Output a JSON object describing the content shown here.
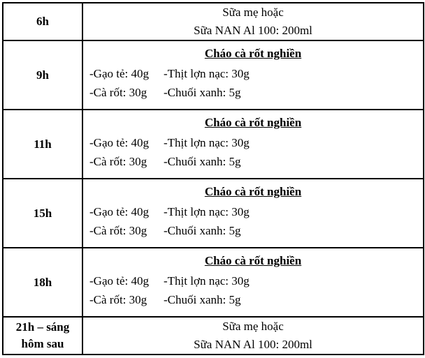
{
  "meta": {
    "border_color": "#000000",
    "background_color": "#ffffff",
    "text_color": "#000000"
  },
  "schedule": {
    "rows": [
      {
        "kind": "milk",
        "time_lines": [
          "6h"
        ],
        "lines": [
          "Sữa mẹ hoặc",
          "Sữa NAN Al 100: 200ml"
        ]
      },
      {
        "kind": "meal",
        "time_lines": [
          "9h"
        ],
        "title": "Cháo cà rốt nghiền",
        "ingredient_rows": [
          [
            "-Gạo tẻ: 40g",
            "-Thịt lợn nạc: 30g"
          ],
          [
            "-Cà rốt: 30g",
            "-Chuối xanh: 5g"
          ]
        ]
      },
      {
        "kind": "meal",
        "time_lines": [
          "11h"
        ],
        "title": "Cháo cà rốt nghiền",
        "ingredient_rows": [
          [
            "-Gạo tẻ: 40g",
            "-Thịt lợn nạc: 30g"
          ],
          [
            "-Cà rốt: 30g",
            "-Chuối xanh: 5g"
          ]
        ]
      },
      {
        "kind": "meal",
        "time_lines": [
          "15h"
        ],
        "title": "Cháo cà rốt nghiền",
        "ingredient_rows": [
          [
            "-Gạo tẻ: 40g",
            "-Thịt lợn nạc: 30g"
          ],
          [
            "-Cà rốt: 30g",
            "-Chuối xanh: 5g"
          ]
        ]
      },
      {
        "kind": "meal",
        "time_lines": [
          "18h"
        ],
        "title": "Cháo cà rốt nghiền",
        "ingredient_rows": [
          [
            "-Gạo tẻ: 40g",
            "-Thịt lợn nạc: 30g"
          ],
          [
            "-Cà rốt: 30g",
            "-Chuối xanh: 5g"
          ]
        ]
      },
      {
        "kind": "milk",
        "time_lines": [
          "21h – sáng",
          "hôm sau"
        ],
        "lines": [
          "Sữa mẹ hoặc",
          "Sữa NAN Al 100: 200ml"
        ]
      }
    ]
  }
}
